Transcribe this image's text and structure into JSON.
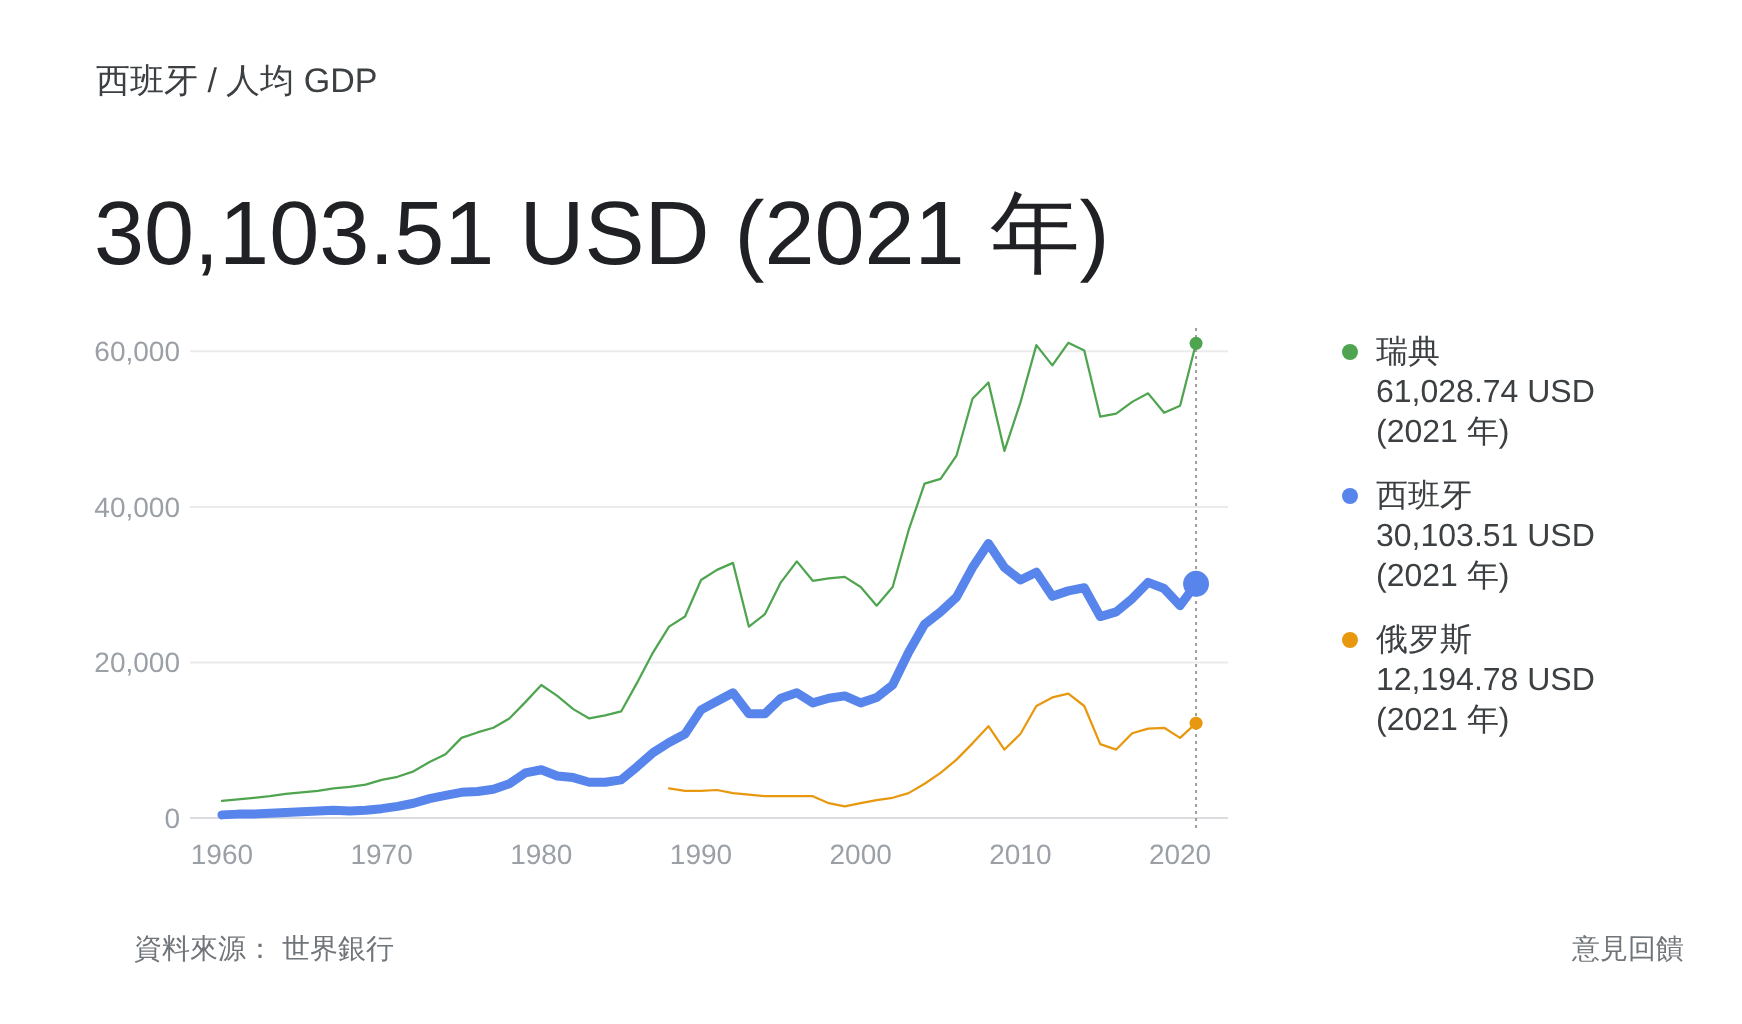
{
  "chart_data": {
    "type": "line",
    "subtitle": "西班牙 / 人均 GDP",
    "title": "30,103.51 USD (2021 年)",
    "annotations": [
      "資料來源： 世界銀行",
      "意見回饋"
    ],
    "x": [
      1960,
      1961,
      1962,
      1963,
      1964,
      1965,
      1966,
      1967,
      1968,
      1969,
      1970,
      1971,
      1972,
      1973,
      1974,
      1975,
      1976,
      1977,
      1978,
      1979,
      1980,
      1981,
      1982,
      1983,
      1984,
      1985,
      1986,
      1987,
      1988,
      1989,
      1990,
      1991,
      1992,
      1993,
      1994,
      1995,
      1996,
      1997,
      1998,
      1999,
      2000,
      2001,
      2002,
      2003,
      2004,
      2005,
      2006,
      2007,
      2008,
      2009,
      2010,
      2011,
      2012,
      2013,
      2014,
      2015,
      2016,
      2017,
      2018,
      2019,
      2020,
      2021
    ],
    "series": [
      {
        "name": "瑞典\n61,028.74 USD\n(2021 年)",
        "color": "#4fa54f",
        "values": [
          2200,
          2400,
          2600,
          2800,
          3100,
          3300,
          3500,
          3800,
          4000,
          4300,
          4900,
          5300,
          6000,
          7200,
          8200,
          10300,
          11000,
          11600,
          12800,
          14900,
          17100,
          15700,
          14000,
          12800,
          13200,
          13700,
          17400,
          21300,
          24600,
          25900,
          30600,
          31900,
          32800,
          24600,
          26200,
          30300,
          33000,
          30500,
          30800,
          31000,
          29700,
          27300,
          29700,
          37000,
          43000,
          43600,
          46600,
          53900,
          56000,
          47200,
          53400,
          60800,
          58200,
          61100,
          60100,
          51600,
          52000,
          53500,
          54600,
          52100,
          53000,
          61028.74
        ]
      },
      {
        "name": "西班牙\n30,103.51 USD\n(2021 年)",
        "color": "#5885ec",
        "values": [
          400,
          500,
          500,
          600,
          700,
          800,
          900,
          1000,
          900,
          1000,
          1200,
          1500,
          1900,
          2500,
          2900,
          3300,
          3400,
          3700,
          4400,
          5800,
          6200,
          5400,
          5200,
          4600,
          4600,
          4900,
          6600,
          8400,
          9700,
          10800,
          13900,
          15000,
          16100,
          13400,
          13400,
          15400,
          16100,
          14800,
          15400,
          15700,
          14800,
          15500,
          17100,
          21300,
          24900,
          26500,
          28400,
          32200,
          35300,
          32200,
          30600,
          31600,
          28500,
          29200,
          29600,
          25900,
          26500,
          28200,
          30300,
          29500,
          27300,
          30103.51
        ]
      },
      {
        "name": "俄罗斯\n12,194.78 USD\n(2021 年)",
        "color": "#e8980f",
        "values": [
          null,
          null,
          null,
          null,
          null,
          null,
          null,
          null,
          null,
          null,
          null,
          null,
          null,
          null,
          null,
          null,
          null,
          null,
          null,
          null,
          null,
          null,
          null,
          null,
          null,
          null,
          null,
          null,
          3800,
          3500,
          3500,
          3600,
          3200,
          3000,
          2800,
          2800,
          2800,
          2800,
          1900,
          1500,
          1900,
          2300,
          2600,
          3200,
          4400,
          5800,
          7500,
          9600,
          11800,
          8800,
          10800,
          14400,
          15500,
          16000,
          14400,
          9500,
          8800,
          10900,
          11500,
          11600,
          10300,
          12194.78
        ]
      },
      {
        "type": "bubble",
        "color": "#4fa54f",
        "values": [
          null,
          null,
          null,
          null,
          null,
          null,
          null,
          null,
          null,
          null,
          null,
          null,
          null,
          null,
          null,
          null,
          null,
          null,
          null,
          null,
          null,
          null,
          null,
          null,
          null,
          null,
          null,
          null,
          null,
          null,
          null,
          null,
          null,
          null,
          null,
          null,
          null,
          null,
          null,
          null,
          null,
          null,
          null,
          null,
          null,
          null,
          null,
          null,
          null,
          null,
          null,
          null,
          null,
          null,
          null,
          null,
          null,
          null,
          null,
          null,
          null,
          61028.74
        ],
        "sizes": [
          null,
          null,
          null,
          null,
          null,
          null,
          null,
          null,
          null,
          null,
          null,
          null,
          null,
          null,
          null,
          null,
          null,
          null,
          null,
          null,
          null,
          null,
          null,
          null,
          null,
          null,
          null,
          null,
          null,
          null,
          null,
          null,
          null,
          null,
          null,
          null,
          null,
          null,
          null,
          null,
          null,
          null,
          null,
          null,
          null,
          null,
          null,
          null,
          null,
          null,
          null,
          null,
          null,
          null,
          null,
          null,
          null,
          null,
          null,
          null,
          null,
          0.25
        ]
      },
      {
        "type": "bubble",
        "color": "#5885ec",
        "values": [
          null,
          null,
          null,
          null,
          null,
          null,
          null,
          null,
          null,
          null,
          null,
          null,
          null,
          null,
          null,
          null,
          null,
          null,
          null,
          null,
          null,
          null,
          null,
          null,
          null,
          null,
          null,
          null,
          null,
          null,
          null,
          null,
          null,
          null,
          null,
          null,
          null,
          null,
          null,
          null,
          null,
          null,
          null,
          null,
          null,
          null,
          null,
          null,
          null,
          null,
          null,
          null,
          null,
          null,
          null,
          null,
          null,
          null,
          null,
          null,
          null,
          30103.51
        ],
        "sizes": [
          null,
          null,
          null,
          null,
          null,
          null,
          null,
          null,
          null,
          null,
          null,
          null,
          null,
          null,
          null,
          null,
          null,
          null,
          null,
          null,
          null,
          null,
          null,
          null,
          null,
          null,
          null,
          null,
          null,
          null,
          null,
          null,
          null,
          null,
          null,
          null,
          null,
          null,
          null,
          null,
          null,
          null,
          null,
          null,
          null,
          null,
          null,
          null,
          null,
          null,
          null,
          null,
          null,
          null,
          null,
          null,
          null,
          null,
          null,
          null,
          null,
          1
        ]
      },
      {
        "type": "bubble",
        "color": "#e8980f",
        "values": [
          null,
          null,
          null,
          null,
          null,
          null,
          null,
          null,
          null,
          null,
          null,
          null,
          null,
          null,
          null,
          null,
          null,
          null,
          null,
          null,
          null,
          null,
          null,
          null,
          null,
          null,
          null,
          null,
          null,
          null,
          null,
          null,
          null,
          null,
          null,
          null,
          null,
          null,
          null,
          null,
          null,
          null,
          null,
          null,
          null,
          null,
          null,
          null,
          null,
          null,
          null,
          null,
          null,
          null,
          null,
          null,
          null,
          null,
          null,
          null,
          null,
          12194.78
        ],
        "sizes": [
          null,
          null,
          null,
          null,
          null,
          null,
          null,
          null,
          null,
          null,
          null,
          null,
          null,
          null,
          null,
          null,
          null,
          null,
          null,
          null,
          null,
          null,
          null,
          null,
          null,
          null,
          null,
          null,
          null,
          null,
          null,
          null,
          null,
          null,
          null,
          null,
          null,
          null,
          null,
          null,
          null,
          null,
          null,
          null,
          null,
          null,
          null,
          null,
          null,
          null,
          null,
          null,
          null,
          null,
          null,
          null,
          null,
          null,
          null,
          null,
          null,
          0.25
        ]
      }
    ],
    "xlim": [
      1958,
      2023
    ],
    "ylim": [
      0,
      63000
    ],
    "xticks": [
      1960,
      1970,
      1980,
      1990,
      2000,
      2010,
      2020
    ],
    "yticks": [
      0,
      {
        "value": 20000,
        "label": "20,000"
      },
      {
        "value": 40000,
        "label": "40,000"
      },
      {
        "value": 60000,
        "label": "60,000"
      }
    ],
    "grid": "y",
    "legend": "right",
    "ref_lines": [
      {
        "axis": "x",
        "value": 2021,
        "color": "#9e9e9e",
        "line_style": "dotted"
      }
    ]
  }
}
